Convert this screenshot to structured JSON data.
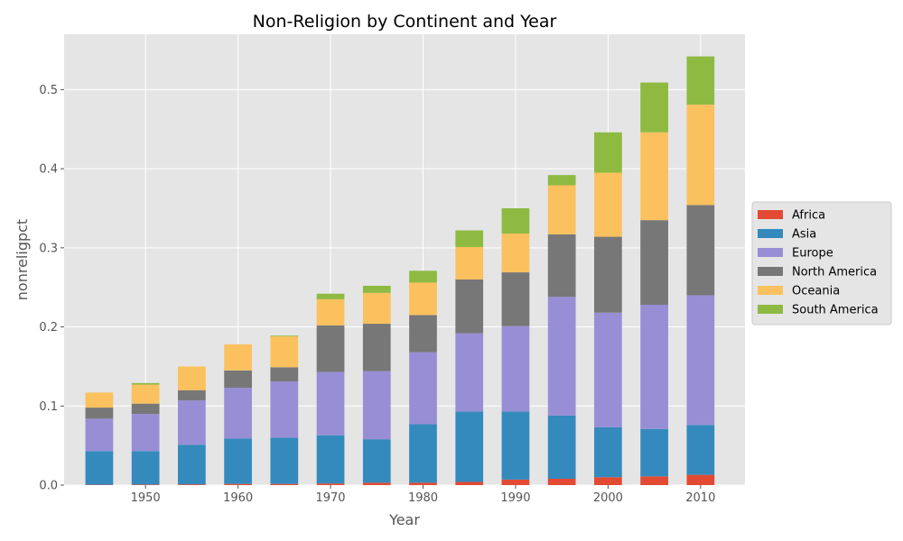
{
  "chart_data": {
    "type": "bar",
    "stacked": true,
    "title": "Non-Religion by Continent and Year",
    "xlabel": "Year",
    "ylabel": "nonreligpct",
    "categories": [
      1945,
      1950,
      1955,
      1960,
      1965,
      1970,
      1975,
      1980,
      1985,
      1990,
      1995,
      2000,
      2005,
      2010
    ],
    "xticks": [
      1950,
      1960,
      1970,
      1980,
      1990,
      2000,
      2010
    ],
    "xlim": [
      1941.2,
      2014.8
    ],
    "ylim": [
      0,
      0.57
    ],
    "yticks": [
      "0.0",
      "0.1",
      "0.2",
      "0.3",
      "0.4",
      "0.5"
    ],
    "grid": true,
    "legend_position": "center-right, outside plot",
    "series": [
      {
        "name": "Africa",
        "color": "#E24A33",
        "values": [
          0.0005,
          0.0007,
          0.001,
          0.0015,
          0.0015,
          0.002,
          0.003,
          0.003,
          0.004,
          0.007,
          0.008,
          0.01,
          0.011,
          0.013
        ]
      },
      {
        "name": "Asia",
        "color": "#348ABD",
        "values": [
          0.0425,
          0.0423,
          0.05,
          0.0575,
          0.0585,
          0.061,
          0.055,
          0.074,
          0.089,
          0.086,
          0.08,
          0.063,
          0.06,
          0.063
        ]
      },
      {
        "name": "Europe",
        "color": "#988ED5",
        "values": [
          0.041,
          0.047,
          0.056,
          0.064,
          0.071,
          0.08,
          0.086,
          0.091,
          0.099,
          0.108,
          0.15,
          0.145,
          0.157,
          0.164
        ]
      },
      {
        "name": "North America",
        "color": "#777777",
        "values": [
          0.014,
          0.013,
          0.013,
          0.022,
          0.018,
          0.059,
          0.06,
          0.047,
          0.068,
          0.068,
          0.079,
          0.096,
          0.107,
          0.114
        ]
      },
      {
        "name": "Oceania",
        "color": "#FBC15E",
        "values": [
          0.019,
          0.024,
          0.03,
          0.033,
          0.039,
          0.033,
          0.039,
          0.041,
          0.041,
          0.049,
          0.062,
          0.081,
          0.111,
          0.127
        ]
      },
      {
        "name": "South America",
        "color": "#8EBA42",
        "values": [
          0.0,
          0.002,
          0.0,
          0.0,
          0.001,
          0.007,
          0.009,
          0.015,
          0.021,
          0.032,
          0.013,
          0.051,
          0.063,
          0.061
        ]
      }
    ]
  }
}
